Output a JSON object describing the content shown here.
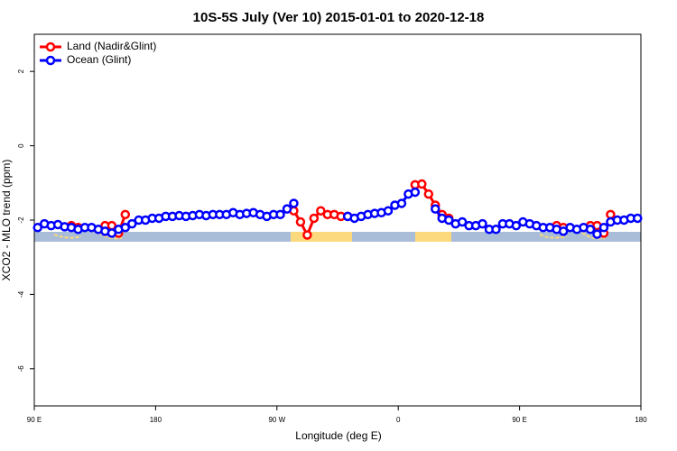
{
  "chart_data": {
    "type": "line",
    "title": "10S-5S July (Ver 10)   2015-01-01 to 2020-12-18",
    "x_label": "Longitude (deg E)",
    "y_label": "XCO2 - MLO trend (ppm)",
    "x": [
      92.5,
      97.5,
      102.5,
      107.5,
      112.5,
      117.5,
      122.5,
      127.5,
      132.5,
      137.5,
      142.5,
      147.5,
      152.5,
      157.5,
      162.5,
      167.5,
      172.5,
      177.5,
      182.5,
      187.5,
      192.5,
      197.5,
      202.5,
      207.5,
      212.5,
      217.5,
      222.5,
      227.5,
      232.5,
      237.5,
      242.5,
      247.5,
      252.5,
      257.5,
      262.5,
      267.5,
      272.5,
      277.5,
      282.5,
      287.5,
      292.5,
      297.5,
      302.5,
      307.5,
      312.5,
      317.5,
      322.5,
      327.5,
      332.5,
      337.5,
      342.5,
      347.5,
      352.5,
      357.5,
      362.5,
      367.5,
      372.5,
      377.5,
      382.5,
      387.5,
      392.5,
      397.5,
      402.5,
      407.5,
      412.5,
      417.5,
      422.5,
      427.5,
      432.5,
      437.5,
      442.5,
      447.5,
      452.5,
      457.5,
      462.5,
      467.5,
      472.5,
      477.5,
      482.5,
      487.5,
      492.5,
      497.5,
      502.5,
      507.5,
      512.5,
      517.5,
      522.5,
      527.5,
      532.5,
      537.5
    ],
    "series": [
      {
        "name": "Land (Nadir&Glint)",
        "color": "#ff0000",
        "values": [
          null,
          null,
          null,
          null,
          null,
          -2.15,
          -2.2,
          null,
          null,
          null,
          -2.15,
          -2.15,
          -2.35,
          -1.85,
          null,
          null,
          null,
          null,
          null,
          null,
          null,
          null,
          null,
          null,
          null,
          null,
          null,
          null,
          null,
          null,
          null,
          null,
          null,
          null,
          null,
          null,
          null,
          null,
          -1.75,
          -2.05,
          -2.4,
          -1.95,
          -1.75,
          -1.85,
          -1.85,
          -1.9,
          -1.9,
          null,
          null,
          null,
          null,
          null,
          null,
          null,
          null,
          null,
          -1.05,
          -1.03,
          -1.3,
          -1.6,
          -1.85,
          -1.95,
          null,
          null,
          null,
          null,
          null,
          null,
          null,
          null,
          null,
          null,
          null,
          null,
          null,
          null,
          null,
          -2.15,
          -2.2,
          null,
          null,
          null,
          -2.15,
          -2.15,
          -2.35,
          -1.85,
          null,
          null,
          null,
          null
        ]
      },
      {
        "name": "Ocean (Glint)",
        "color": "#0000ff",
        "values": [
          -2.2,
          -2.1,
          -2.15,
          -2.12,
          -2.18,
          -2.2,
          -2.25,
          -2.2,
          -2.2,
          -2.25,
          -2.3,
          -2.35,
          -2.25,
          -2.2,
          -2.1,
          -2.0,
          -2.0,
          -1.95,
          -1.95,
          -1.9,
          -1.9,
          -1.88,
          -1.9,
          -1.88,
          -1.85,
          -1.88,
          -1.85,
          -1.85,
          -1.85,
          -1.8,
          -1.85,
          -1.82,
          -1.8,
          -1.85,
          -1.9,
          -1.85,
          -1.85,
          -1.7,
          -1.55,
          null,
          null,
          null,
          null,
          null,
          null,
          null,
          -1.9,
          -1.95,
          -1.9,
          -1.85,
          -1.82,
          -1.8,
          -1.75,
          -1.6,
          -1.55,
          -1.3,
          -1.25,
          null,
          null,
          -1.7,
          -1.95,
          -2.0,
          -2.1,
          -2.05,
          -2.15,
          -2.15,
          -2.1,
          -2.25,
          -2.25,
          -2.1,
          -2.1,
          -2.15,
          -2.05,
          -2.1,
          -2.15,
          -2.2,
          -2.2,
          -2.25,
          -2.3,
          -2.2,
          -2.25,
          -2.2,
          -2.25,
          -2.38,
          -2.2,
          -2.05,
          -2.0,
          -2.0,
          -1.95,
          -1.95
        ]
      }
    ],
    "xlim": [
      90,
      540
    ],
    "xticks": [
      {
        "value": 90,
        "label": "90 E"
      },
      180,
      {
        "value": 270,
        "label": "90 W"
      },
      {
        "value": 360,
        "label": "0"
      },
      {
        "value": 450,
        "label": "90 E"
      },
      {
        "value": 540,
        "label": "180"
      }
    ],
    "ylim": [
      -7,
      3
    ],
    "yticks": [
      -6,
      -4,
      -2,
      0,
      2
    ],
    "legend": "top-left"
  }
}
